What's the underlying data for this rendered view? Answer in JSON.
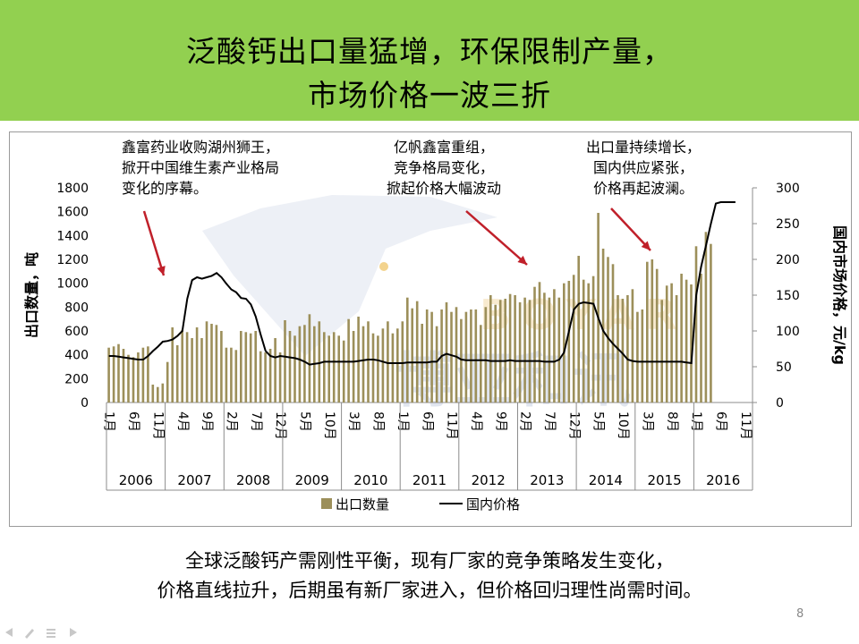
{
  "slide": {
    "title_line1": "泛酸钙出口量猛增，环保限制产量，",
    "title_line2": "市场价格一波三折",
    "bottom_line1": "全球泛酸钙产需刚性平衡，现有厂家的竞争策略发生变化，",
    "bottom_line2": "价格直线拉升，后期虽有新厂家进入，但价格回归理性尚需时间。",
    "page_number": "8",
    "watermark_text": "博亚和讯",
    "watermark_latin": "BOYAR",
    "colors": {
      "title_bg": "#92d050",
      "bar": "#9c8f5a",
      "line": "#000000",
      "arrow": "#c0202a"
    }
  },
  "chart_data": {
    "type": "bar+line",
    "ylabel_left": "出口数量，吨",
    "ylabel_right": "国内市场价格，元/kg",
    "ylim_left": [
      0,
      1800
    ],
    "ylim_right": [
      0,
      300
    ],
    "yticks_left": [
      "0",
      "200",
      "400",
      "600",
      "800",
      "1000",
      "1200",
      "1400",
      "1600",
      "1800"
    ],
    "yticks_right": [
      "0",
      "50",
      "100",
      "150",
      "200",
      "250",
      "300"
    ],
    "month_ticks": [
      "1月",
      "6月",
      "11月",
      "4月",
      "9月",
      "2月",
      "7月",
      "12月",
      "5月",
      "10月",
      "3月",
      "8月",
      "1月",
      "6月",
      "11月",
      "4月",
      "9月",
      "2月",
      "7月",
      "12月",
      "5月",
      "10月",
      "3月",
      "8月",
      "1月",
      "6月",
      "11月"
    ],
    "years": [
      "2006",
      "2007",
      "2008",
      "2009",
      "2010",
      "2011",
      "2012",
      "2013",
      "2014",
      "2015",
      "2016"
    ],
    "legend": [
      "出口数量",
      "国内价格"
    ],
    "annotations": [
      {
        "lines": [
          "鑫富药业收购湖州狮王，",
          "掀开中国维生素产业格局",
          "变化的序幕。"
        ],
        "period": "2007-01"
      },
      {
        "lines": [
          "亿帆鑫富重组，",
          "竞争格局变化，",
          "掀起价格大幅波动"
        ],
        "period": "2013-02"
      },
      {
        "lines": [
          "出口量持续增长，",
          "国内供应紧张，",
          "价格再起波澜。"
        ],
        "period": "2015-01"
      }
    ],
    "x_start": "2006-01",
    "series": [
      {
        "name": "出口数量",
        "type": "bar",
        "values": [
          460,
          470,
          490,
          450,
          400,
          380,
          420,
          460,
          470,
          150,
          130,
          160,
          340,
          630,
          480,
          610,
          590,
          540,
          630,
          540,
          680,
          660,
          650,
          600,
          460,
          460,
          440,
          600,
          590,
          580,
          600,
          430,
          420,
          450,
          540,
          420,
          690,
          600,
          560,
          640,
          650,
          740,
          640,
          680,
          590,
          560,
          590,
          560,
          520,
          700,
          600,
          720,
          640,
          680,
          580,
          560,
          620,
          680,
          580,
          620,
          680,
          880,
          790,
          850,
          660,
          780,
          760,
          640,
          780,
          840,
          760,
          800,
          700,
          760,
          780,
          780,
          650,
          800,
          900,
          820,
          860,
          870,
          910,
          900,
          840,
          880,
          860,
          970,
          1010,
          920,
          880,
          950,
          880,
          1000,
          1020,
          1070,
          1230,
          1030,
          1000,
          1060,
          1590,
          1290,
          1220,
          1160,
          900,
          870,
          900,
          950,
          760,
          780,
          1180,
          1200,
          1120,
          860,
          980,
          1000,
          900,
          1080,
          1030,
          990,
          1310,
          1080,
          1430,
          1330
        ]
      },
      {
        "name": "国内价格",
        "type": "line",
        "values": [
          65,
          65,
          64,
          63,
          62,
          61,
          60,
          60,
          65,
          72,
          78,
          85,
          86,
          88,
          93,
          100,
          145,
          171,
          175,
          173,
          175,
          177,
          181,
          175,
          166,
          158,
          154,
          146,
          145,
          137,
          120,
          95,
          72,
          65,
          63,
          65,
          64,
          63,
          62,
          60,
          57,
          53,
          54,
          55,
          57,
          57,
          57,
          57,
          57,
          57,
          57,
          58,
          59,
          60,
          60,
          59,
          57,
          55,
          55,
          55,
          55,
          56,
          56,
          56,
          56,
          56,
          57,
          57,
          65,
          68,
          66,
          64,
          60,
          59,
          59,
          59,
          59,
          59,
          58,
          58,
          58,
          58,
          59,
          58,
          58,
          58,
          58,
          58,
          58,
          57,
          57,
          57,
          60,
          70,
          100,
          130,
          138,
          140,
          139,
          138,
          118,
          100,
          90,
          82,
          75,
          68,
          60,
          58,
          57,
          57,
          57,
          57,
          57,
          57,
          57,
          57,
          57,
          57,
          56,
          55,
          150,
          190,
          220,
          250,
          278,
          280,
          280,
          280,
          280
        ]
      }
    ]
  }
}
